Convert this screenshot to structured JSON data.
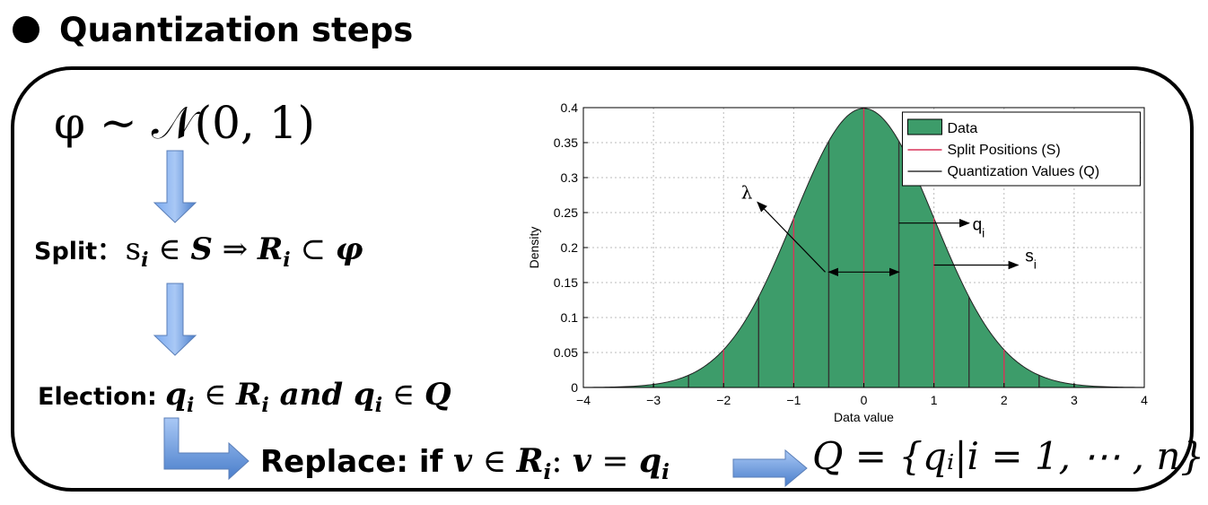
{
  "heading": "Quantization steps",
  "steps": {
    "phi_formula": "φ ~ 𝒩(0, 1)",
    "split_label": "Split：",
    "split_formula": {
      "s": "s",
      "i": "i",
      "rest1": " ∈ ",
      "S": "S",
      "arrow": " ⇒ ",
      "R": "R",
      "i2": "i",
      "sub": " ⊂ ",
      "phi": "φ"
    },
    "election_label": "Election: ",
    "election_formula": {
      "q": "q",
      "i": "i",
      "in1": " ∈ ",
      "R": "R",
      "i2": "i",
      "and": " and ",
      "q2": "q",
      "i3": "i",
      "in2": " ∈ ",
      "Q": "Q"
    },
    "replace_label": "Replace: if ",
    "replace_formula": {
      "v": "v",
      "in": " ∈ ",
      "R": "R",
      "i": "i",
      "colon": ": ",
      "v2": "v",
      "eq": " = ",
      "q": "q",
      "i2": "i"
    },
    "Q_formula": "Q = {qᵢ|i = 1, ⋯ , n}"
  },
  "colors": {
    "fill": "#3d9c6a",
    "split_line": "#d9335a",
    "quant_line": "#333333",
    "arrow": "#5b8fd8"
  },
  "chart_data": {
    "type": "area",
    "xlabel": "Data value",
    "ylabel": "Density",
    "xlim": [
      -4,
      4
    ],
    "ylim": [
      0,
      0.4
    ],
    "x_ticks": [
      -4,
      -3,
      -2,
      -1,
      0,
      1,
      2,
      3,
      4
    ],
    "x_tick_labels": [
      "−4",
      "−3",
      "−2",
      "−1",
      "0",
      "1",
      "2",
      "3",
      "4"
    ],
    "y_ticks": [
      0,
      0.05,
      0.1,
      0.15,
      0.2,
      0.25,
      0.3,
      0.35,
      0.4
    ],
    "y_tick_labels": [
      "0",
      "0.05",
      "0.1",
      "0.15",
      "0.2",
      "0.25",
      "0.3",
      "0.35",
      "0.4"
    ],
    "grid": true,
    "distribution": {
      "name": "normal",
      "mean": 0,
      "std": 1
    },
    "split_positions": [
      -2,
      -1,
      0,
      1,
      2
    ],
    "quantization_values": [
      -3,
      -2.5,
      -1.5,
      -0.5,
      0.5,
      1.5,
      2.5,
      3
    ],
    "legend": {
      "placement": "top-right",
      "entries": [
        "Data",
        "Split Positions (S)",
        "Quantization Values (Q)"
      ]
    },
    "annotations": [
      {
        "text": "λ",
        "label_x": -1.67,
        "label_y": 0.27,
        "tip_x": -0.55,
        "tip_y": 0.165
      },
      {
        "text": "q",
        "sub": "i",
        "label_x": 1.55,
        "label_y": 0.225
      },
      {
        "text": "s",
        "sub": "i",
        "label_x": 2.3,
        "label_y": 0.18
      }
    ],
    "lambda_interval": [
      -0.5,
      0.5
    ],
    "lambda_interval_y": 0.165,
    "qi_arrow": {
      "from_x": 0.5,
      "to_x": 1.5,
      "y": 0.235
    },
    "si_arrow": {
      "from_x": 1.0,
      "to_x": 2.2,
      "y": 0.175
    }
  }
}
